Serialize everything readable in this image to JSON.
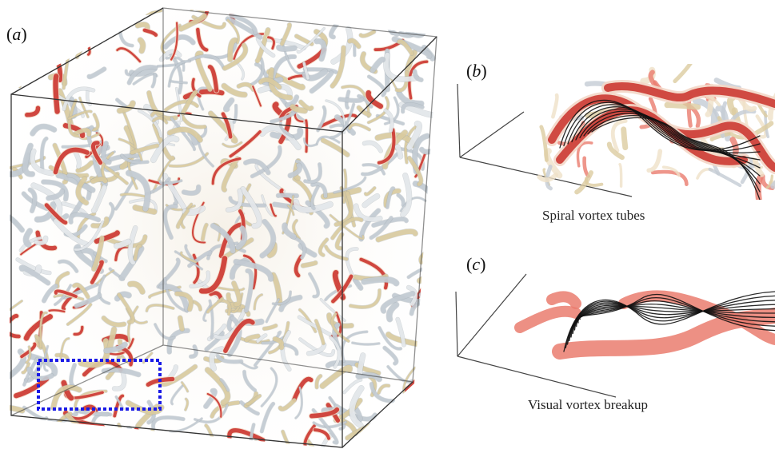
{
  "panels": {
    "a": {
      "open": "(",
      "letter": "a",
      "close": ")"
    },
    "b": {
      "open": "(",
      "letter": "b",
      "close": ")",
      "caption": "Spiral vortex tubes"
    },
    "c": {
      "open": "(",
      "letter": "c",
      "close": ")",
      "caption": "Visual vortex breakup"
    }
  },
  "colors": {
    "vortex_red": "#cc3a33",
    "vortex_salmon": "#ea7c6e",
    "vortex_tan": "#dccca0",
    "vortex_silver": "#c4ccd4",
    "streamline": "#111111",
    "highlight_box": "#1a1ae6",
    "frame": "#333333"
  }
}
